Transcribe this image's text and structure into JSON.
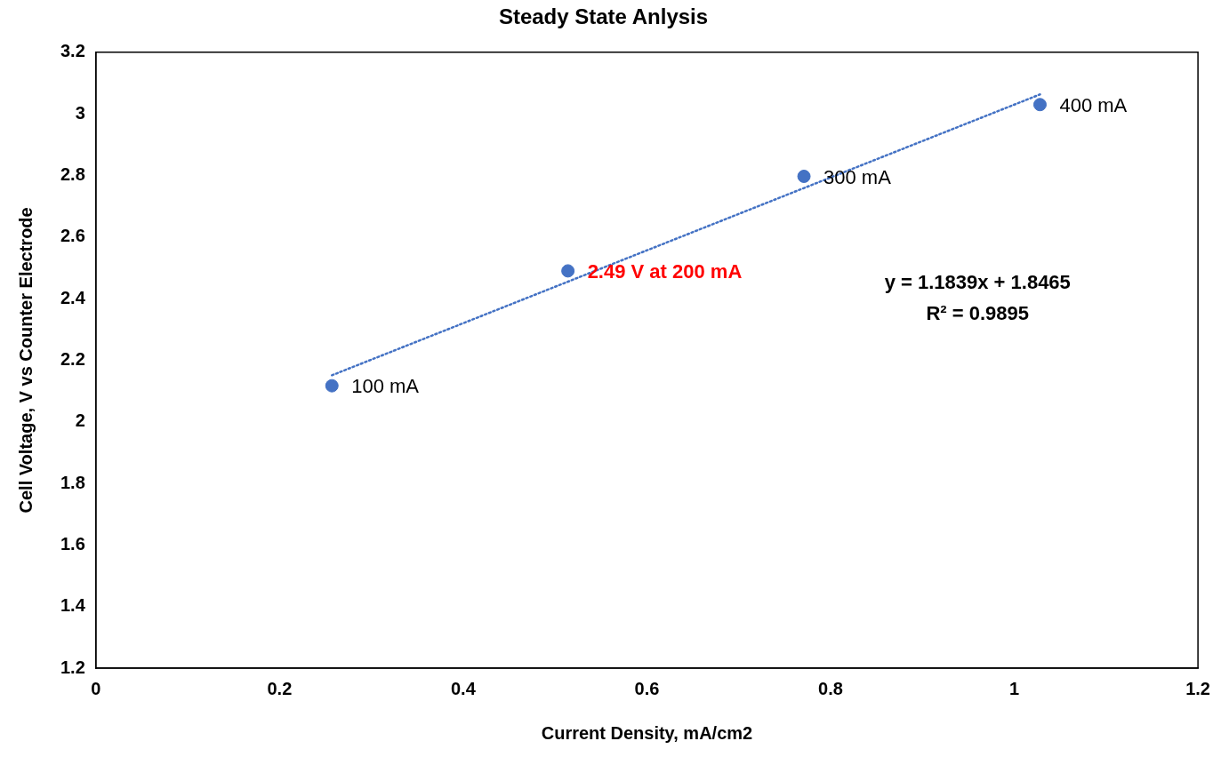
{
  "chart_data": {
    "type": "scatter",
    "title": "Steady State Anlysis",
    "xlabel": "Current Density, mA/cm2",
    "ylabel": "Cell Voltage, V vs Counter Electrode",
    "xlim": [
      0,
      1.2
    ],
    "xticks": [
      0,
      0.2,
      0.4,
      0.6,
      0.8,
      1,
      1.2
    ],
    "ylim": [
      1.2,
      3.2
    ],
    "yticks": [
      1.2,
      1.4,
      1.6,
      1.8,
      2,
      2.2,
      2.4,
      2.6,
      2.8,
      3,
      3.2
    ],
    "grid": false,
    "legend": false,
    "marker": "circle",
    "series": [
      {
        "color": "#4472c4",
        "x": [
          0.257,
          0.514,
          0.771,
          1.028
        ],
        "values": [
          2.117,
          2.49,
          2.797,
          3.03
        ]
      },
      {
        "type": "line",
        "color": "#4472c4",
        "line_style": "dotted",
        "marker": "none",
        "x": [
          0.257,
          1.028
        ],
        "values": [
          2.151,
          3.063
        ]
      }
    ],
    "annotations": [
      {
        "text": "100 mA",
        "x": 0.257,
        "y": 2.117
      },
      {
        "text": "2.49 V at 200 mA",
        "x": 0.514,
        "y": 2.49
      },
      {
        "text": "300 mA",
        "x": 0.771,
        "y": 2.797
      },
      {
        "text": "400 mA",
        "x": 1.028,
        "y": 3.03
      },
      "y = 1.1839x + 1.8465",
      "R² = 0.9895"
    ]
  }
}
